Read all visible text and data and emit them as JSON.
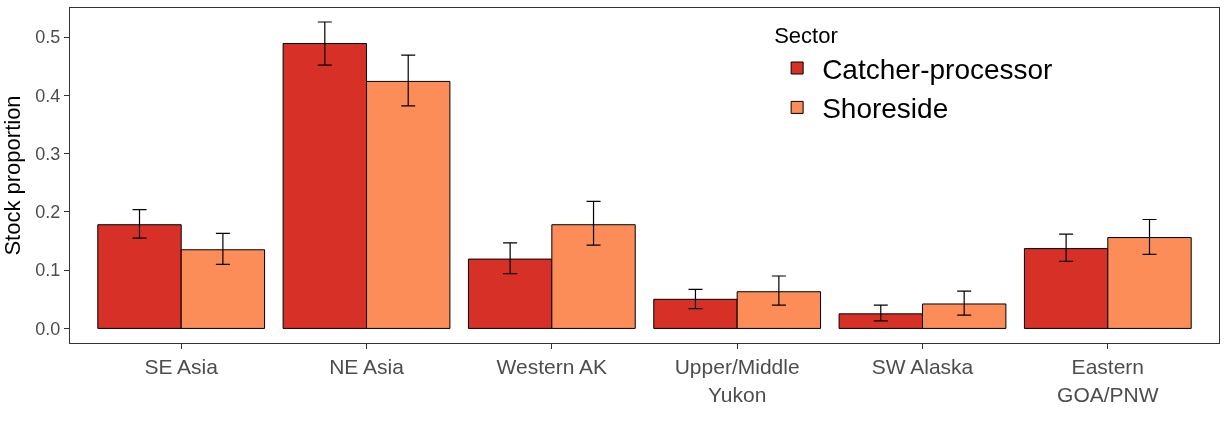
{
  "chart_data": {
    "type": "bar",
    "ylabel": "Stock proportion",
    "legend_title": "Sector",
    "categories": [
      "SE Asia",
      "NE Asia",
      "Western AK",
      "Upper/Middle\nYukon",
      "SW Alaska",
      "Eastern\nGOA/PNW"
    ],
    "series": [
      {
        "name": "Catcher-processor",
        "color": "#d73027",
        "values": [
          0.178,
          0.489,
          0.119,
          0.05,
          0.025,
          0.137
        ],
        "errors": [
          [
            0.155,
            0.204
          ],
          [
            0.452,
            0.526
          ],
          [
            0.094,
            0.147
          ],
          [
            0.034,
            0.067
          ],
          [
            0.013,
            0.04
          ],
          [
            0.115,
            0.162
          ]
        ]
      },
      {
        "name": "Shoreside",
        "color": "#fc8d59",
        "values": [
          0.135,
          0.424,
          0.178,
          0.063,
          0.042,
          0.156
        ],
        "errors": [
          [
            0.11,
            0.163
          ],
          [
            0.382,
            0.469
          ],
          [
            0.143,
            0.218
          ],
          [
            0.04,
            0.09
          ],
          [
            0.023,
            0.064
          ],
          [
            0.127,
            0.187
          ]
        ]
      }
    ],
    "ylim": [
      -0.025,
      0.55
    ],
    "yticks": [
      {
        "value": 0,
        "label": "0.0"
      },
      0.1,
      0.2,
      0.3,
      0.4,
      0.5
    ],
    "legend": "top right"
  }
}
